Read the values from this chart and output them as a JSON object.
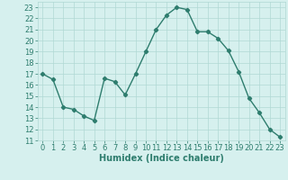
{
  "x": [
    0,
    1,
    2,
    3,
    4,
    5,
    6,
    7,
    8,
    9,
    10,
    11,
    12,
    13,
    14,
    15,
    16,
    17,
    18,
    19,
    20,
    21,
    22,
    23
  ],
  "y": [
    17,
    16.5,
    14,
    13.8,
    13.2,
    12.8,
    16.6,
    16.3,
    15.1,
    17,
    19,
    21,
    22.3,
    23,
    22.8,
    20.8,
    20.8,
    20.2,
    19.1,
    17.2,
    14.8,
    13.5,
    12,
    11.3
  ],
  "line_color": "#2e7d6e",
  "marker": "D",
  "marker_size": 2.2,
  "bg_color": "#d6f0ee",
  "grid_color": "#b0d8d4",
  "xlabel": "Humidex (Indice chaleur)",
  "xlim": [
    -0.5,
    23.5
  ],
  "ylim": [
    11,
    23.5
  ],
  "yticks": [
    11,
    12,
    13,
    14,
    15,
    16,
    17,
    18,
    19,
    20,
    21,
    22,
    23
  ],
  "xticks": [
    0,
    1,
    2,
    3,
    4,
    5,
    6,
    7,
    8,
    9,
    10,
    11,
    12,
    13,
    14,
    15,
    16,
    17,
    18,
    19,
    20,
    21,
    22,
    23
  ],
  "title_color": "#2e7d6e",
  "xlabel_fontsize": 7,
  "tick_fontsize": 6,
  "linewidth": 1.0
}
